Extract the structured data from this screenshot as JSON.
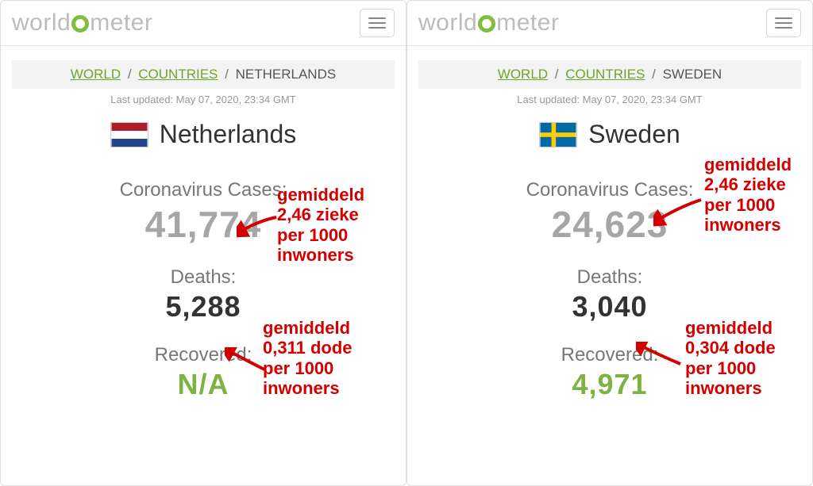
{
  "logo": {
    "pre": "world",
    "post": "meter"
  },
  "left": {
    "breadcrumb": {
      "world": "WORLD",
      "countries": "COUNTRIES",
      "current": "NETHERLANDS"
    },
    "updated": "Last updated: May 07, 2020, 23:34 GMT",
    "country": "Netherlands",
    "flag": {
      "stripes": [
        "#ae1c28",
        "#ffffff",
        "#21468b"
      ]
    },
    "cases_label": "Coronavirus Cases:",
    "cases_value": "41,774",
    "deaths_label": "Deaths:",
    "deaths_value": "5,288",
    "recovered_label": "Recovered:",
    "recovered_value": "N/A",
    "annotation_cases": "gemiddeld\n2,46 zieke\nper 1000\ninwoners",
    "annotation_deaths": "gemiddeld\n0,311 dode\nper 1000\ninwoners",
    "annotation_color": "#d40000"
  },
  "right": {
    "breadcrumb": {
      "world": "WORLD",
      "countries": "COUNTRIES",
      "current": "SWEDEN"
    },
    "updated": "Last updated: May 07, 2020, 23:34 GMT",
    "country": "Sweden",
    "flag": {
      "bg": "#006aa7",
      "cross": "#fecc00"
    },
    "cases_label": "Coronavirus Cases:",
    "cases_value": "24,623",
    "deaths_label": "Deaths:",
    "deaths_value": "3,040",
    "recovered_label": "Recovered:",
    "recovered_value": "4,971",
    "annotation_cases": "gemiddeld\n2,46 zieke\nper 1000\ninwoners",
    "annotation_deaths": "gemiddeld\n0,304 dode\nper 1000\ninwoners",
    "annotation_color": "#d40000"
  },
  "colors": {
    "cases_value": "#a6a6a6",
    "deaths_value": "#333333",
    "recovered_value": "#7cb342",
    "link": "#6da52a"
  }
}
